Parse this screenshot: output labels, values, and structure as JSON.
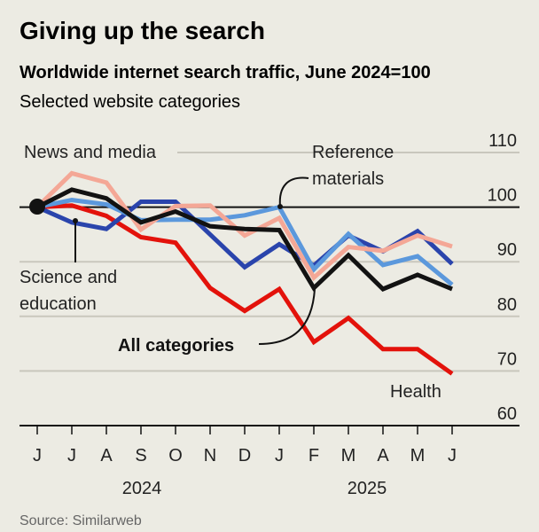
{
  "chart_data": {
    "type": "line",
    "title": "Giving up the search",
    "subtitle": "Worldwide internet search traffic, June 2024=100",
    "note": "Selected website categories",
    "source": "Source: Similarweb",
    "xlabel": "",
    "ylabel": "",
    "ylim": [
      60,
      110
    ],
    "yticks": [
      60,
      70,
      80,
      90,
      100,
      110
    ],
    "yticks_labels": [
      "60",
      "70",
      "80",
      "90",
      "100",
      "110"
    ],
    "x": [
      "J",
      "J",
      "A",
      "S",
      "O",
      "N",
      "D",
      "J",
      "F",
      "M",
      "A",
      "M",
      "J"
    ],
    "years": [
      "2024",
      "2025"
    ],
    "grid": true,
    "series": [
      {
        "name": "News and media",
        "label_lines": [
          "News and media"
        ],
        "color": "#f4a796",
        "values": [
          100,
          106.2,
          104.5,
          95.9,
          100.2,
          100.3,
          94.8,
          98,
          87.1,
          92.7,
          92,
          94.8,
          92.8
        ]
      },
      {
        "name": "Reference materials",
        "label_lines": [
          "Reference",
          "materials"
        ],
        "color": "#5b98dc",
        "values": [
          100,
          101.3,
          100.5,
          97.6,
          97.7,
          97.7,
          98.5,
          100,
          88.6,
          95.1,
          89.4,
          91,
          85.8
        ]
      },
      {
        "name": "Science and education",
        "label_lines": [
          "Science and",
          "education"
        ],
        "color": "#2a44ac",
        "values": [
          100,
          97.2,
          96,
          101,
          101,
          95,
          89,
          93.2,
          89.3,
          94.8,
          91.9,
          95.6,
          89.6
        ]
      },
      {
        "name": "All categories",
        "label_lines": [
          "All categories"
        ],
        "color": "#121212",
        "values": [
          100,
          103.2,
          101.6,
          97.2,
          99.2,
          96.5,
          96,
          95.8,
          85.2,
          91.2,
          85,
          87.6,
          85
        ]
      },
      {
        "name": "Health",
        "label_lines": [
          "Health"
        ],
        "color": "#e3120b",
        "values": [
          100,
          100.3,
          98.4,
          94.5,
          93.5,
          85.2,
          81,
          85,
          75.3,
          79.7,
          74,
          74,
          69.5
        ]
      }
    ]
  }
}
